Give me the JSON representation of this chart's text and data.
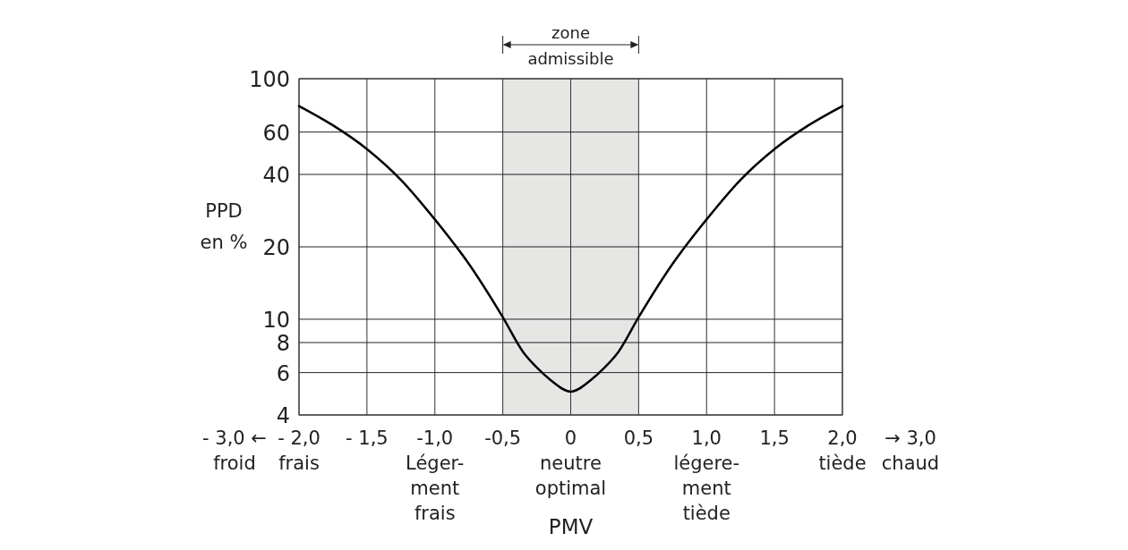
{
  "chart_data": {
    "type": "line",
    "ylabel": "PPD\nen %",
    "xlabel": "PMV",
    "x": [
      -2,
      -1.75,
      -1.5,
      -1.25,
      -1,
      -0.75,
      -0.5,
      -0.35,
      -0.25,
      -0.15,
      0,
      0.15,
      0.25,
      0.35,
      0.5,
      0.75,
      1,
      1.25,
      1.5,
      1.75,
      2
    ],
    "series": [
      {
        "color": "#000000",
        "values": [
          77,
          64,
          51,
          38,
          26,
          17,
          10.2,
          7.3,
          6.3,
          5.6,
          5,
          5.6,
          6.3,
          7.3,
          10.2,
          17,
          26,
          38,
          51,
          64,
          77
        ]
      }
    ],
    "log": "y",
    "xlim": [
      -2,
      2
    ],
    "ylim": [
      4,
      100
    ],
    "xticks": [
      {
        "value": -2,
        "label": "- 2,0\nfrais"
      },
      {
        "value": -1.5,
        "label": "- 1,5"
      },
      {
        "value": -1,
        "label": "-1,0\nLéger-\nment\nfrais"
      },
      {
        "value": -0.5,
        "label": "-0,5"
      },
      {
        "value": 0,
        "label": "0\nneutre\noptimal"
      },
      {
        "value": 0.5,
        "label": "0,5"
      },
      {
        "value": 1,
        "label": "1,0\nlégere-\nment\ntiède"
      },
      {
        "value": 1.5,
        "label": "1,5"
      },
      {
        "value": 2,
        "label": "2,0\ntiède"
      }
    ],
    "yticks": [
      4,
      6,
      8,
      10,
      20,
      40,
      60,
      100
    ],
    "grid": true,
    "marker": "none",
    "line_style": "solid",
    "bands": [
      {
        "axis": "x",
        "from": -0.5,
        "to": 0.5,
        "label": "zone\nadmissible",
        "color": "#e6e7e5"
      }
    ],
    "annotations": [
      "- 3,0 ←\nfroid",
      "→ 3,0\nchaud"
    ]
  }
}
